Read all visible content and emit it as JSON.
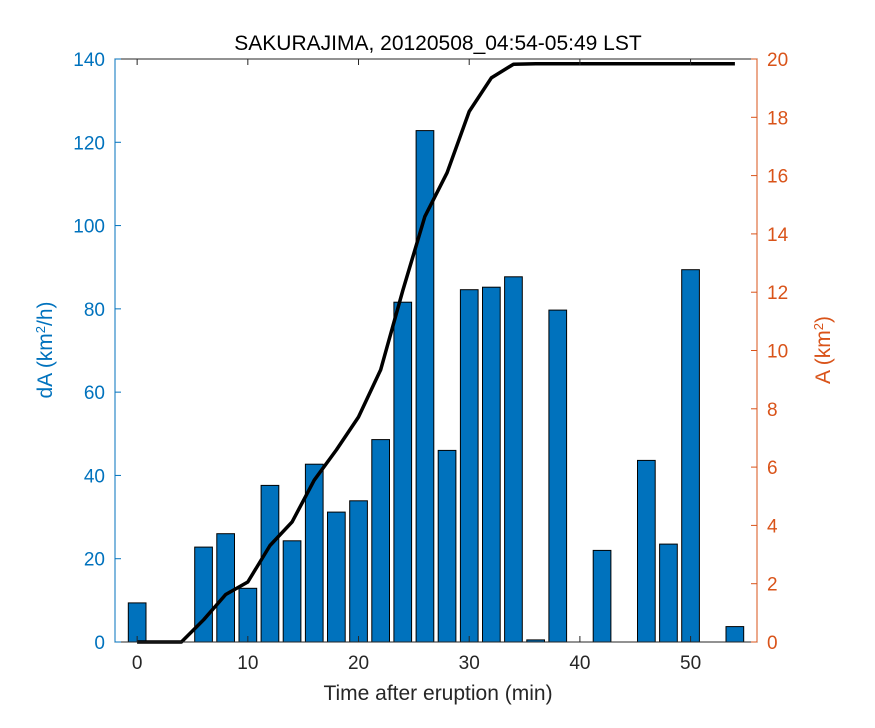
{
  "chart_data": {
    "type": "bar",
    "title": "SAKURAJIMA, 20120508_04:54-05:49 LST",
    "xlabel": "Time after eruption (min)",
    "ylabel_left": {
      "base": "dA (km",
      "sup": "2",
      "tail": "/h)"
    },
    "ylabel_right": {
      "base": "A (km",
      "sup": "2",
      "tail": ")"
    },
    "xlim": [
      -2,
      56
    ],
    "ylim_left": [
      0,
      140
    ],
    "ylim_right": [
      0,
      20
    ],
    "xticks": [
      0,
      10,
      20,
      30,
      40,
      50
    ],
    "yticks_left": [
      0,
      20,
      40,
      60,
      80,
      100,
      120,
      140
    ],
    "yticks_right": [
      0,
      2,
      4,
      6,
      8,
      10,
      12,
      14,
      16,
      18,
      20
    ],
    "colors": {
      "bar": "#0072BD",
      "left_axis": "#0072BD",
      "right_axis": "#D95319",
      "line": "#000000"
    },
    "series": [
      {
        "type": "bar",
        "axis": "left",
        "x": [
          0,
          2,
          4,
          6,
          8,
          10,
          12,
          14,
          16,
          18,
          20,
          22,
          24,
          26,
          28,
          30,
          32,
          34,
          36,
          38,
          40,
          42,
          44,
          46,
          48,
          50,
          52,
          54
        ],
        "values": [
          9.4,
          0,
          0,
          22.8,
          26,
          12.9,
          37.6,
          24.3,
          42.7,
          31.2,
          33.9,
          48.6,
          81.6,
          122.8,
          46,
          84.6,
          85.2,
          87.7,
          0.5,
          79.7,
          0,
          22,
          0,
          43.6,
          23.5,
          89.4,
          0,
          3.7
        ]
      },
      {
        "type": "line",
        "axis": "right",
        "x": [
          0,
          2,
          4,
          6,
          8,
          10,
          12,
          14,
          16,
          18,
          20,
          22,
          24,
          26,
          28,
          30,
          32,
          34,
          36,
          38,
          40,
          42,
          44,
          46,
          48,
          50,
          52,
          54
        ],
        "values": [
          0,
          0,
          0,
          0.76,
          1.63,
          2.06,
          3.31,
          4.12,
          5.55,
          6.59,
          7.72,
          9.34,
          12.06,
          14.6,
          16.1,
          18.2,
          19.35,
          19.82,
          19.84,
          19.84,
          19.84,
          19.84,
          19.84,
          19.84,
          19.84,
          19.84,
          19.84,
          19.84
        ]
      }
    ]
  }
}
